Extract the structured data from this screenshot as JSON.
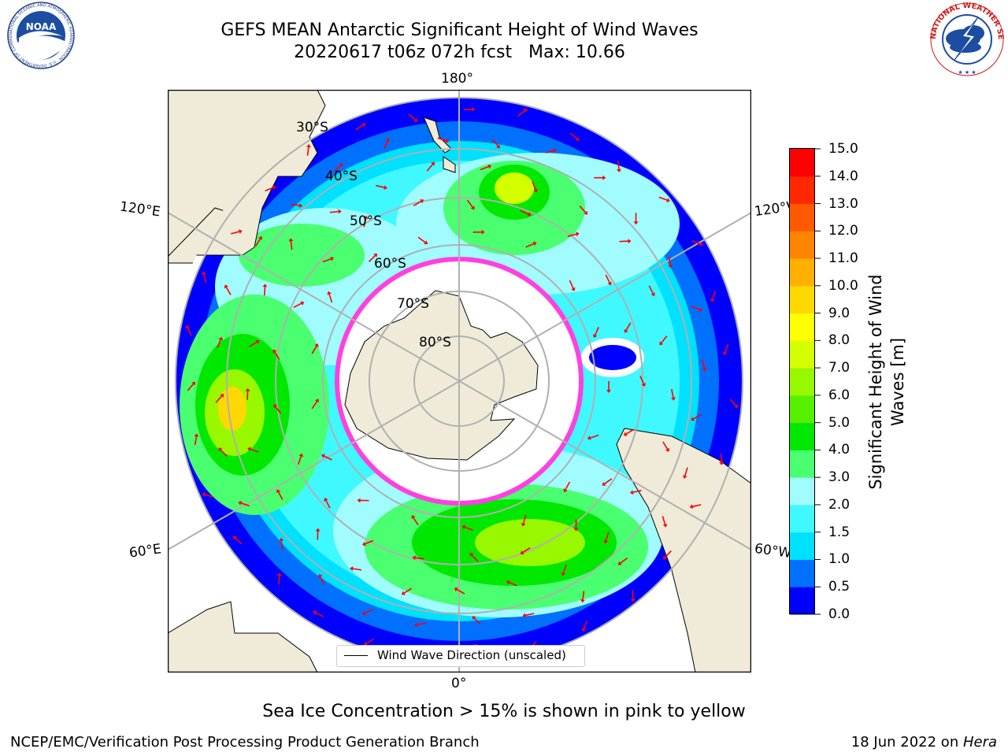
{
  "header": {
    "title_line1": "GEFS MEAN Antarctic Significant Height of Wind Waves",
    "title_line2": "20220617 t06z 072h fcst   Max: 10.66"
  },
  "logos": {
    "noaa": {
      "text": "NOAA",
      "ring_text": "NATIONAL OCEANIC AND ATMOSPHERIC ADMINISTRATION · U.S. DEPARTMENT OF COMMERCE"
    },
    "nws": {
      "ring_text": "NATIONAL WEATHER SERVICE"
    }
  },
  "map": {
    "projection": "south polar stereographic",
    "longitude_labels": {
      "top": "180°",
      "bottom": "0°",
      "upper_left": "120°E",
      "upper_right": "120°W",
      "lower_left": "60°E",
      "lower_right": "60°W"
    },
    "latitude_labels": [
      "30°S",
      "40°S",
      "50°S",
      "60°S",
      "70°S",
      "80°S"
    ],
    "colors": {
      "land": "#efebd8",
      "ocean": "#ffffff",
      "wave_arrow": "#ff0000",
      "ice_edge": "#ff40e0",
      "grid": "#b0b0b0"
    }
  },
  "legend": {
    "label": "Wind Wave Direction (unscaled)"
  },
  "colorbar": {
    "title_line1": "Significant Height of Wind",
    "title_line2": "Waves [m]",
    "ticks": [
      "15.0",
      "14.0",
      "13.0",
      "12.0",
      "11.0",
      "10.0",
      "9.0",
      "8.0",
      "7.0",
      "6.0",
      "5.0",
      "4.0",
      "3.0",
      "2.0",
      "1.5",
      "1.0",
      "0.5",
      "0.0"
    ],
    "colors_bottom_to_top": [
      "#0000ff",
      "#0070ff",
      "#00e0ff",
      "#40f8ff",
      "#a0fcff",
      "#4aff70",
      "#00e800",
      "#56f000",
      "#98f800",
      "#d4ff00",
      "#ffff00",
      "#ffd800",
      "#ffb000",
      "#ff8400",
      "#ff5a00",
      "#ff2800",
      "#ff0000"
    ]
  },
  "footer": {
    "ice_note": "Sea Ice Concentration > 15% is shown in pink to yellow",
    "left": "NCEP/EMC/Verification Post Processing Product Generation Branch",
    "right_prefix": "18 Jun 2022 on ",
    "right_host": "Hera"
  }
}
